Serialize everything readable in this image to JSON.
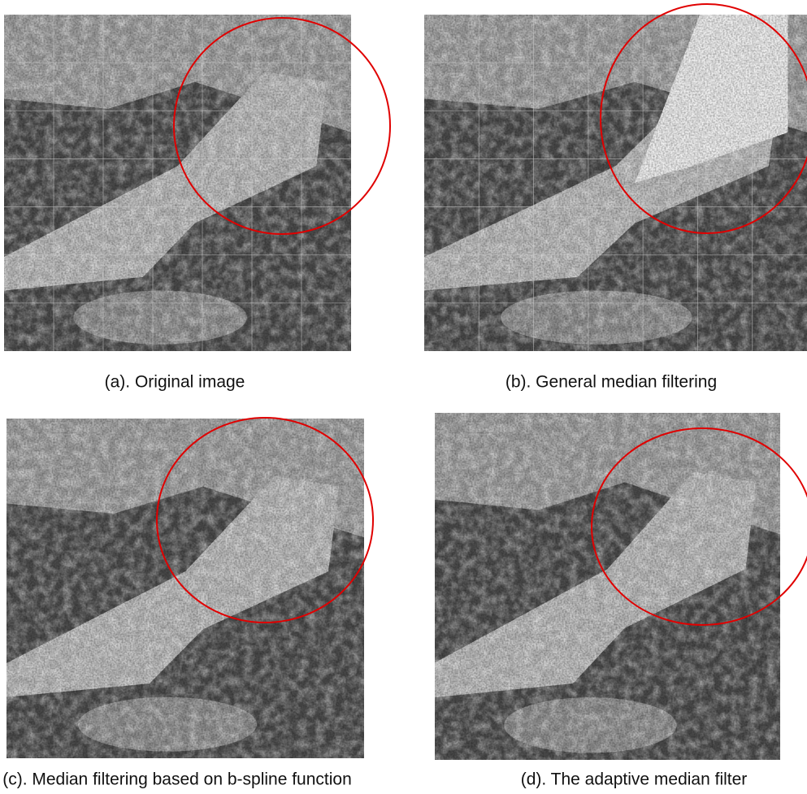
{
  "figure": {
    "panels": [
      {
        "caption": "(a). Original image"
      },
      {
        "caption": "(b). General median filtering"
      },
      {
        "caption": "(c). Median filtering based on b-spline function"
      },
      {
        "caption": "(d). The adaptive median filter"
      }
    ]
  }
}
